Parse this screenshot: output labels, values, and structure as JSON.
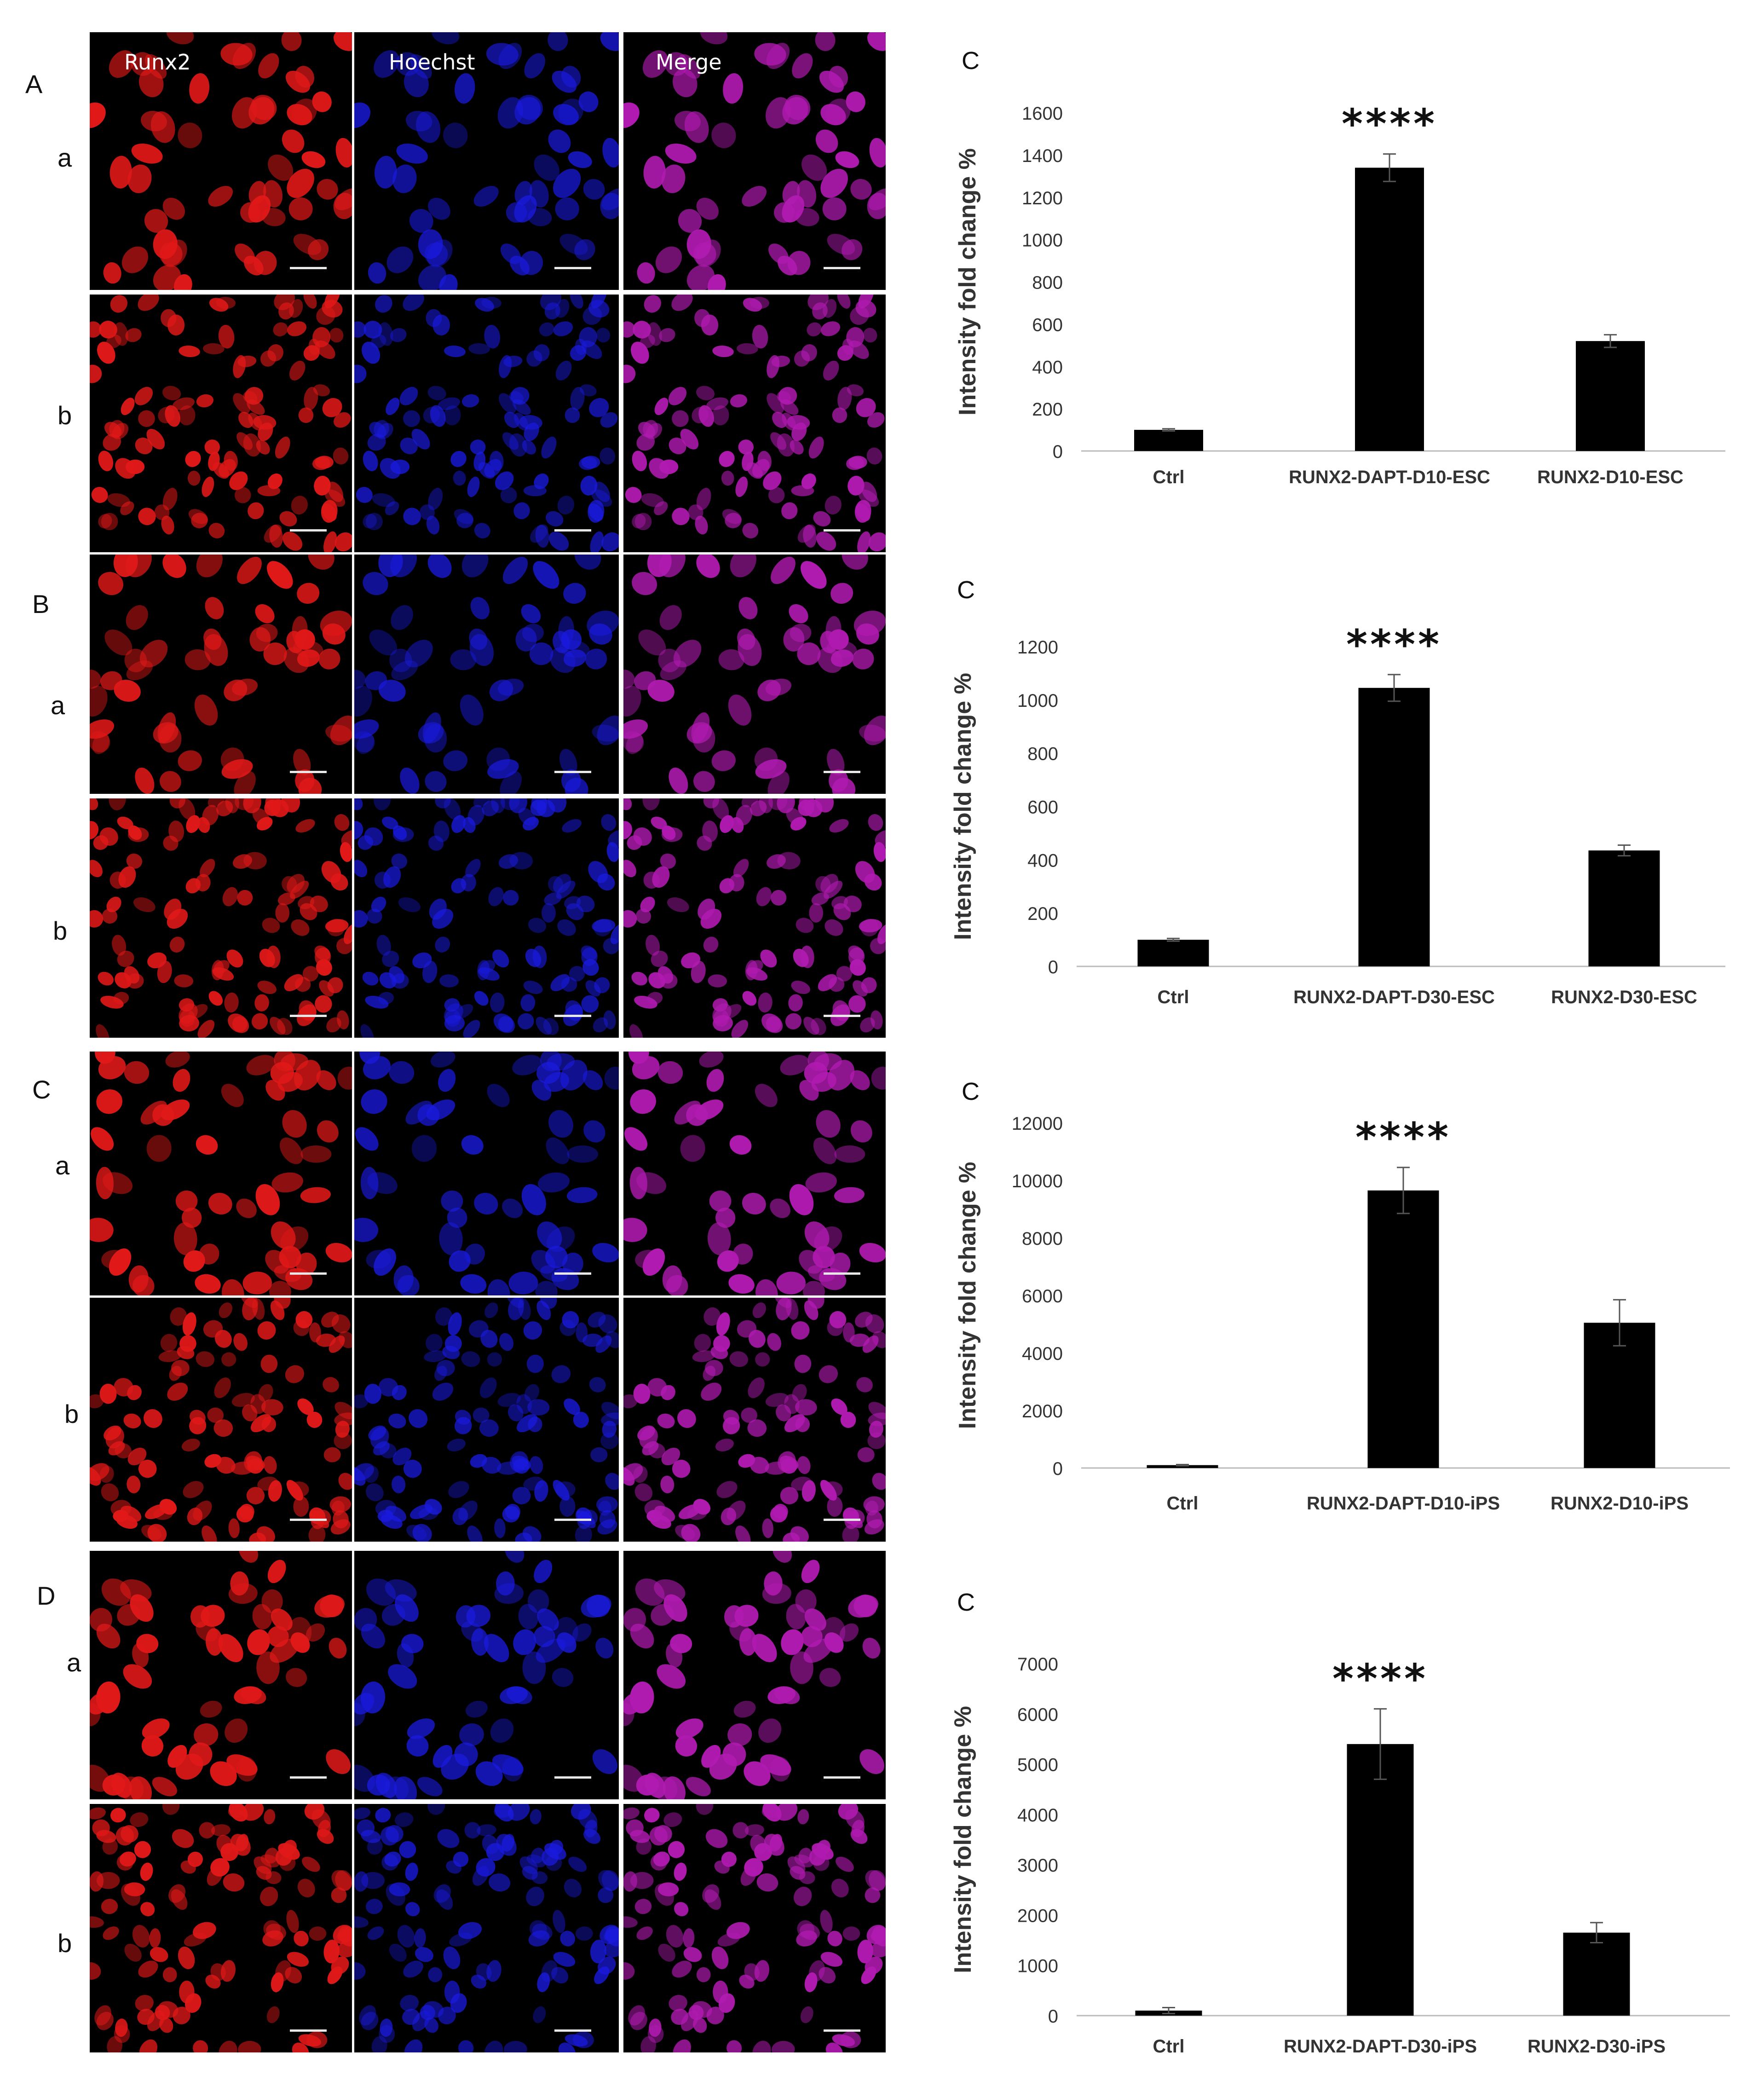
{
  "panels": [
    {
      "letter": "A",
      "rows": [
        "a",
        "b"
      ]
    },
    {
      "letter": "B",
      "rows": [
        "a",
        "b"
      ]
    },
    {
      "letter": "C",
      "rows": [
        "a",
        "b"
      ]
    },
    {
      "letter": "D",
      "rows": [
        "a",
        "b"
      ]
    }
  ],
  "channel_labels": [
    "Runx2",
    "Hoechst",
    "Merge"
  ],
  "colors": {
    "runx2": "#e01818",
    "hoechst": "#1a1ae0",
    "merge": "#b01ab0",
    "bar": "#000000",
    "axis": "#bbbbbb",
    "text": "#333333"
  },
  "chart_data": [
    {
      "type": "bar",
      "panel_label": "C",
      "categories": [
        "Ctrl",
        "RUNX2-DAPT-D10-ESC",
        "RUNX2-D10-ESC"
      ],
      "values": [
        100,
        1340,
        520
      ],
      "errors": [
        5,
        65,
        30
      ],
      "significance": [
        "",
        "****",
        ""
      ],
      "ylabel": "Intensity fold change %",
      "ylim": [
        0,
        1600
      ],
      "yticks": [
        0,
        200,
        400,
        600,
        800,
        1000,
        1200,
        1400,
        1600
      ]
    },
    {
      "type": "bar",
      "panel_label": "C",
      "categories": [
        "Ctrl",
        "RUNX2-DAPT-D30-ESC",
        "RUNX2-D30-ESC"
      ],
      "values": [
        100,
        1045,
        435
      ],
      "errors": [
        5,
        50,
        20
      ],
      "significance": [
        "",
        "****",
        ""
      ],
      "ylabel": "Intensity fold change %",
      "ylim": [
        0,
        1200
      ],
      "yticks": [
        0,
        200,
        400,
        600,
        800,
        1000,
        1200
      ]
    },
    {
      "type": "bar",
      "panel_label": "C",
      "categories": [
        "Ctrl",
        "RUNX2-DAPT-D10-iPS",
        "RUNX2-D10-iPS"
      ],
      "values": [
        100,
        9650,
        5050
      ],
      "errors": [
        20,
        800,
        800
      ],
      "significance": [
        "",
        "****",
        ""
      ],
      "ylabel": "Intensity fold change %",
      "ylim": [
        0,
        12000
      ],
      "yticks": [
        0,
        2000,
        4000,
        6000,
        8000,
        10000,
        12000
      ]
    },
    {
      "type": "bar",
      "panel_label": "C",
      "categories": [
        "Ctrl",
        "RUNX2-DAPT-D30-iPS",
        "RUNX2-D30-iPS"
      ],
      "values": [
        100,
        5400,
        1650
      ],
      "errors": [
        60,
        700,
        200
      ],
      "significance": [
        "",
        "****",
        ""
      ],
      "ylabel": "Intensity fold change %",
      "ylim": [
        0,
        7000
      ],
      "yticks": [
        0,
        1000,
        2000,
        3000,
        4000,
        5000,
        6000,
        7000
      ]
    }
  ]
}
